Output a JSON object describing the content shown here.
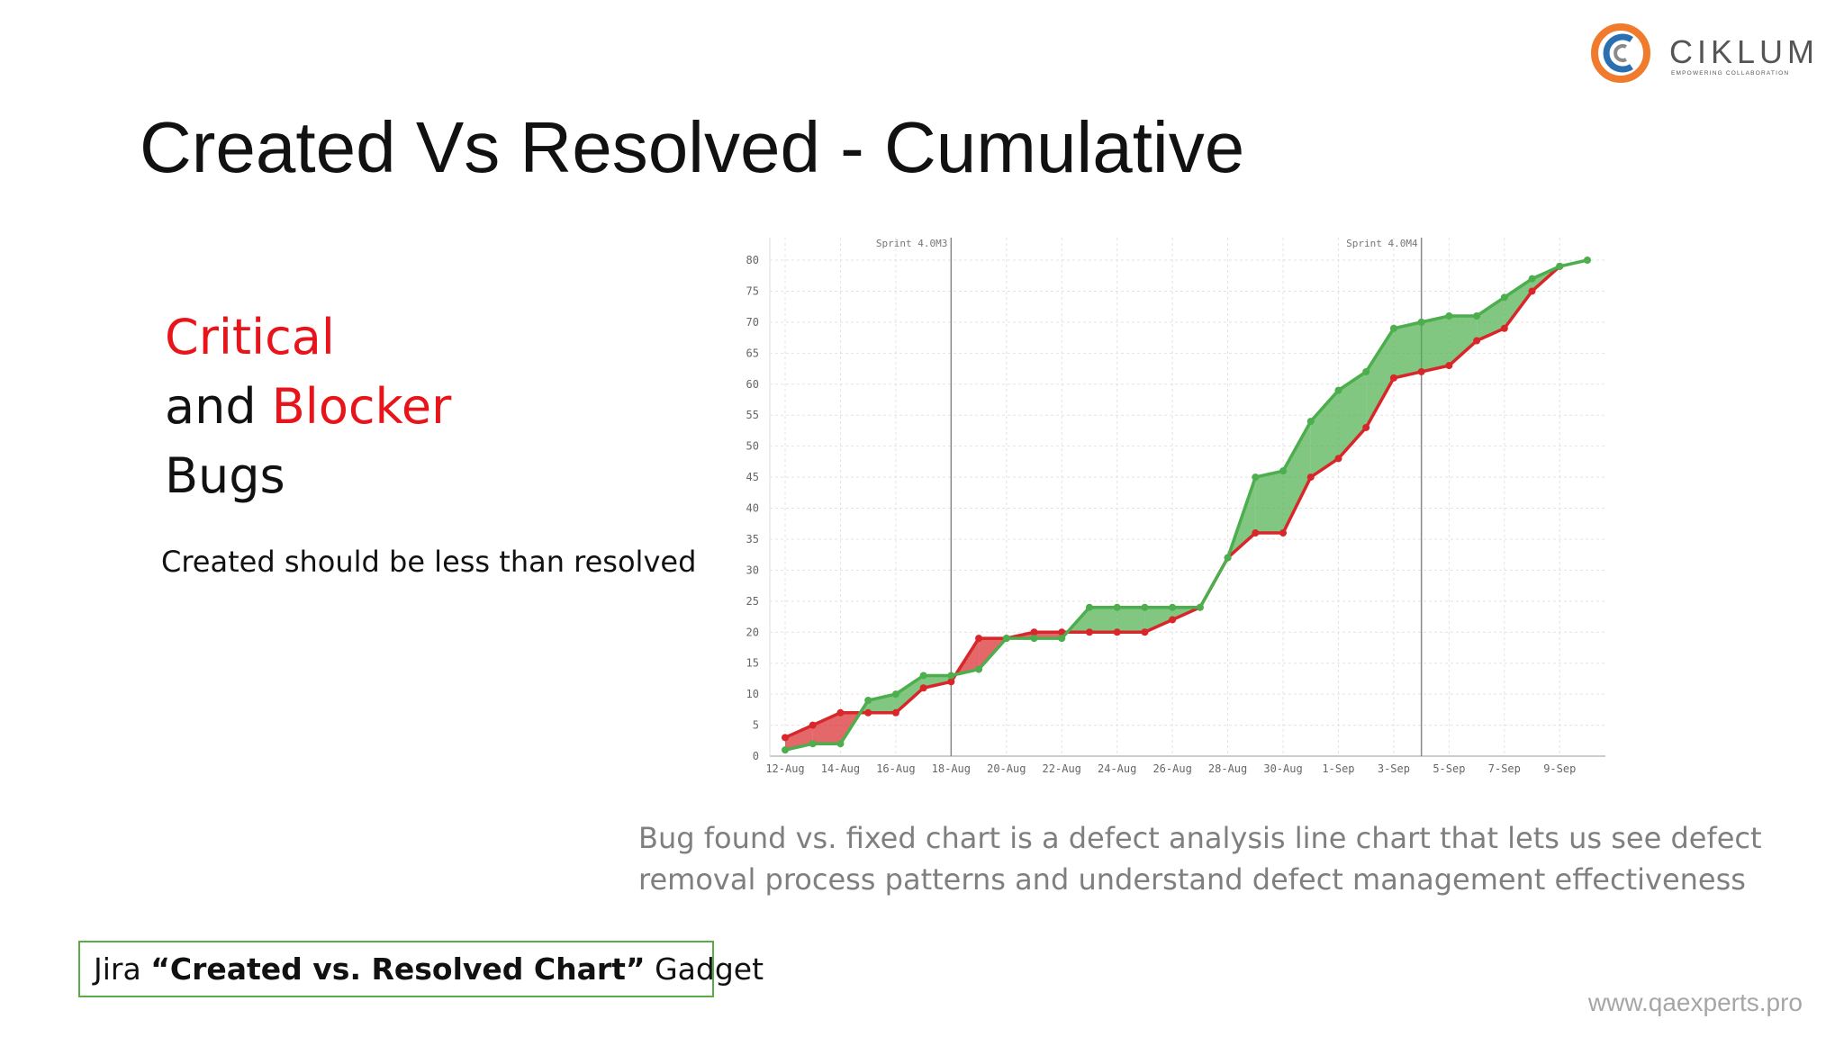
{
  "header": {
    "title": "Created Vs Resolved - Cumulative"
  },
  "logo": {
    "name": "CIKLUM",
    "tagline": "EMPOWERING COLLABORATION"
  },
  "heading": {
    "line1": "Critical",
    "line2a": "and ",
    "line2b": "Blocker",
    "line3": "Bugs"
  },
  "note": "Created should be less than resolved",
  "description": [
    "Bug found vs. fixed chart is a defect analysis line chart that lets us see defect",
    "removal process patterns and understand defect management effectiveness"
  ],
  "caption": [
    "Jira ",
    "“Created vs. Resolved Chart”",
    " Gadget"
  ],
  "footer": "www.qaexperts.pro",
  "chart_data": {
    "type": "line",
    "categories": [
      "12-Aug",
      null,
      "14-Aug",
      null,
      "16-Aug",
      null,
      "18-Aug",
      null,
      "20-Aug",
      null,
      "22-Aug",
      null,
      "24-Aug",
      null,
      "26-Aug",
      null,
      "28-Aug",
      null,
      "30-Aug",
      null,
      "1-Sep",
      null,
      "3-Sep",
      null,
      "5-Sep",
      null,
      "7-Sep",
      null,
      "9-Sep",
      null
    ],
    "series": [
      {
        "color": "#d9262b",
        "values": [
          3,
          5,
          7,
          7,
          7,
          11,
          12,
          19,
          19,
          20,
          20,
          20,
          20,
          20,
          22,
          24,
          32,
          36,
          36,
          45,
          48,
          53,
          61,
          62,
          63,
          67,
          69,
          75,
          79,
          null
        ]
      },
      {
        "color": "#4cae4c",
        "values": [
          1,
          2,
          2,
          9,
          10,
          13,
          13,
          14,
          19,
          19,
          19,
          24,
          24,
          24,
          24,
          24,
          32,
          45,
          46,
          54,
          59,
          62,
          69,
          70,
          71,
          71,
          74,
          77,
          79,
          80
        ]
      }
    ],
    "ylim": [
      0,
      80
    ],
    "yticks": [
      0,
      5,
      10,
      15,
      20,
      25,
      30,
      35,
      40,
      45,
      50,
      55,
      60,
      65,
      70,
      75,
      80
    ],
    "grid": true,
    "markers": [
      {
        "label": "Sprint 4.0M3",
        "at": 6
      },
      {
        "label": "Sprint 4.0M4",
        "at": 23
      }
    ]
  }
}
